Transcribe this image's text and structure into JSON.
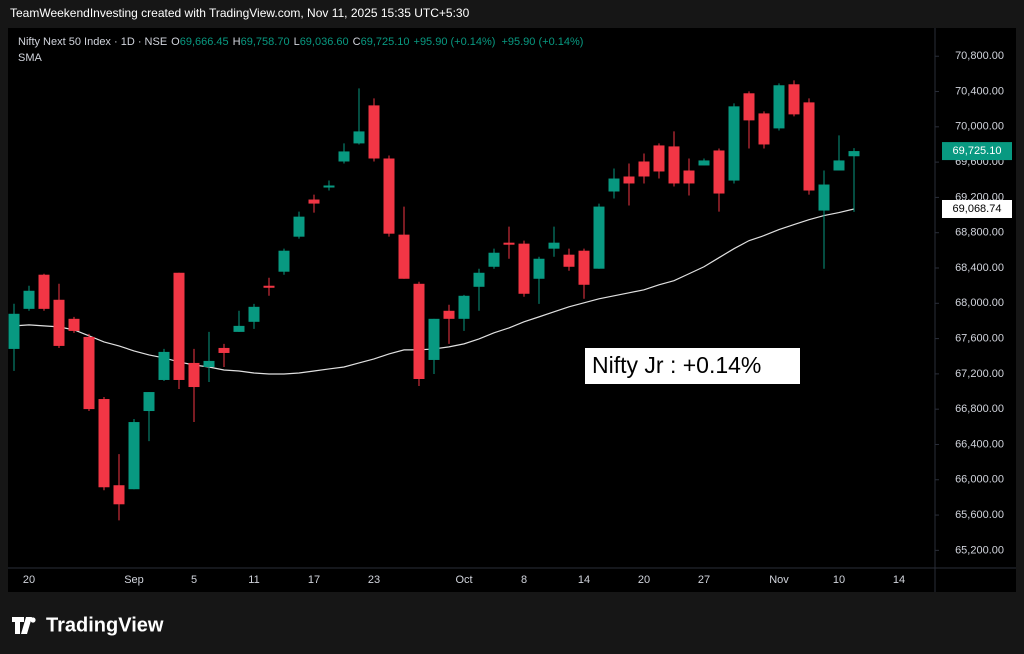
{
  "header": {
    "credit": "TeamWeekendInvesting created with TradingView.com, Nov 11, 2025 15:35 UTC+5:30",
    "brand": "TradingView"
  },
  "chart_data": {
    "type": "candlestick",
    "symbol": "Nifty Next 50 Index · 1D · NSE",
    "ohlc_legend": [
      {
        "key": "O",
        "value": "69,666.45"
      },
      {
        "key": "H",
        "value": "69,758.70"
      },
      {
        "key": "L",
        "value": "69,036.60"
      },
      {
        "key": "C",
        "value": "69,725.10"
      }
    ],
    "change_labels": [
      "+95.90 (+0.14%)",
      "+95.90 (+0.14%)"
    ],
    "annotation": "Nifty Jr : +0.14%",
    "up_color": "#089981",
    "down_color": "#f23645",
    "categories": [
      null,
      "20",
      null,
      null,
      null,
      null,
      null,
      null,
      "Sep",
      null,
      null,
      null,
      "5",
      null,
      null,
      null,
      "11",
      null,
      null,
      null,
      "17",
      null,
      null,
      null,
      "23",
      null,
      null,
      null,
      null,
      null,
      "Oct",
      null,
      null,
      null,
      "8",
      null,
      null,
      null,
      "14",
      null,
      null,
      null,
      "20",
      null,
      null,
      null,
      "27",
      null,
      null,
      null,
      null,
      "Nov",
      null,
      null,
      null,
      "10",
      null,
      null,
      null,
      "14"
    ],
    "open": [
      67483,
      67937,
      68324,
      68040,
      67824,
      67619,
      66915,
      65938,
      65893,
      66779,
      67131,
      68346,
      67324,
      67278,
      67494,
      67676,
      67790,
      68199,
      68358,
      68755,
      69176,
      69312,
      69607,
      69812,
      70243,
      69641,
      68778,
      68221,
      67358,
      67915,
      67824,
      68187,
      68414,
      68687,
      68676,
      68278,
      68619,
      68551,
      68596,
      68392,
      69267,
      69437,
      69607,
      69789,
      69778,
      69505,
      69562,
      69732,
      69391,
      70380,
      70152,
      69982,
      70482,
      70277,
      69051,
      69505,
      69666.45,
      null,
      null,
      null
    ],
    "high": [
      67995,
      68199,
      68335,
      68221,
      67846,
      67653,
      66938,
      66290,
      66688,
      66994,
      67483,
      68346,
      67483,
      67676,
      67540,
      67915,
      67994,
      68290,
      68619,
      69039,
      69232,
      69391,
      69812,
      70436,
      70323,
      69675,
      69096,
      68244,
      67824,
      67983,
      68096,
      68392,
      68619,
      68869,
      68710,
      68528,
      68869,
      68619,
      68619,
      69130,
      69528,
      69584,
      69698,
      69812,
      69948,
      69641,
      69641,
      69755,
      70266,
      70402,
      70175,
      70493,
      70527,
      70323,
      69505,
      69903,
      69758.7,
      null,
      null,
      null
    ],
    "low": [
      67234,
      67915,
      67915,
      67494,
      67665,
      66779,
      65881,
      65540,
      65893,
      66438,
      67119,
      67028,
      66654,
      67108,
      67278,
      67676,
      67710,
      68085,
      68324,
      68733,
      69028,
      69278,
      69584,
      69800,
      69607,
      68755,
      68278,
      67063,
      67199,
      67540,
      67687,
      67915,
      68392,
      68505,
      68074,
      67994,
      68528,
      68369,
      68051,
      68392,
      69187,
      69108,
      69358,
      69414,
      69323,
      69221,
      69562,
      69039,
      69358,
      69755,
      69755,
      69959,
      70118,
      69232,
      68392,
      69505,
      69036.6,
      null,
      null,
      null
    ],
    "close": [
      67881,
      68142,
      67937,
      67517,
      67687,
      66801,
      65915,
      65722,
      66654,
      66994,
      67449,
      67131,
      67051,
      67347,
      67437,
      67744,
      67960,
      68176,
      68596,
      68982,
      69130,
      69335,
      69721,
      69948,
      69641,
      68789,
      68278,
      67142,
      67824,
      67824,
      68085,
      68346,
      68573,
      68664,
      68108,
      68505,
      68687,
      68414,
      68210,
      69096,
      69414,
      69358,
      69437,
      69494,
      69358,
      69358,
      69619,
      69244,
      70232,
      70073,
      69800,
      70471,
      70141,
      69278,
      69346,
      69619,
      69725.1,
      null,
      null,
      null
    ],
    "close_label": "69,725.10",
    "sma": {
      "name": "SMA",
      "color": "#e0e0e0",
      "value_label": "69,068.74",
      "values": [
        67744,
        67755,
        67744,
        67733,
        67699,
        67631,
        67562,
        67517,
        67460,
        67415,
        67381,
        67335,
        67301,
        67278,
        67244,
        67233,
        67210,
        67199,
        67199,
        67210,
        67233,
        67256,
        67278,
        67324,
        67369,
        67426,
        67472,
        67472,
        67483,
        67506,
        67540,
        67596,
        67665,
        67721,
        67790,
        67846,
        67903,
        67960,
        68005,
        68051,
        68085,
        68119,
        68153,
        68210,
        68256,
        68335,
        68414,
        68517,
        68619,
        68710,
        68767,
        68835,
        68892,
        68948,
        68994,
        69028,
        69068.74,
        null,
        null,
        null
      ]
    },
    "ylim": [
      65000,
      71120
    ],
    "yticks": [
      {
        "value": 65200,
        "label": "65,200.00"
      },
      {
        "value": 65600,
        "label": "65,600.00"
      },
      {
        "value": 66000,
        "label": "66,000.00"
      },
      {
        "value": 66400,
        "label": "66,400.00"
      },
      {
        "value": 66800,
        "label": "66,800.00"
      },
      {
        "value": 67200,
        "label": "67,200.00"
      },
      {
        "value": 67600,
        "label": "67,600.00"
      },
      {
        "value": 68000,
        "label": "68,000.00"
      },
      {
        "value": 68400,
        "label": "68,400.00"
      },
      {
        "value": 68800,
        "label": "68,800.00"
      },
      {
        "value": 69200,
        "label": "69,200.00"
      },
      {
        "value": 69600,
        "label": "69,600.00"
      },
      {
        "value": 70000,
        "label": "70,000.00"
      },
      {
        "value": 70400,
        "label": "70,400.00"
      },
      {
        "value": 70800,
        "label": "70,800.00"
      }
    ],
    "grid": false
  }
}
